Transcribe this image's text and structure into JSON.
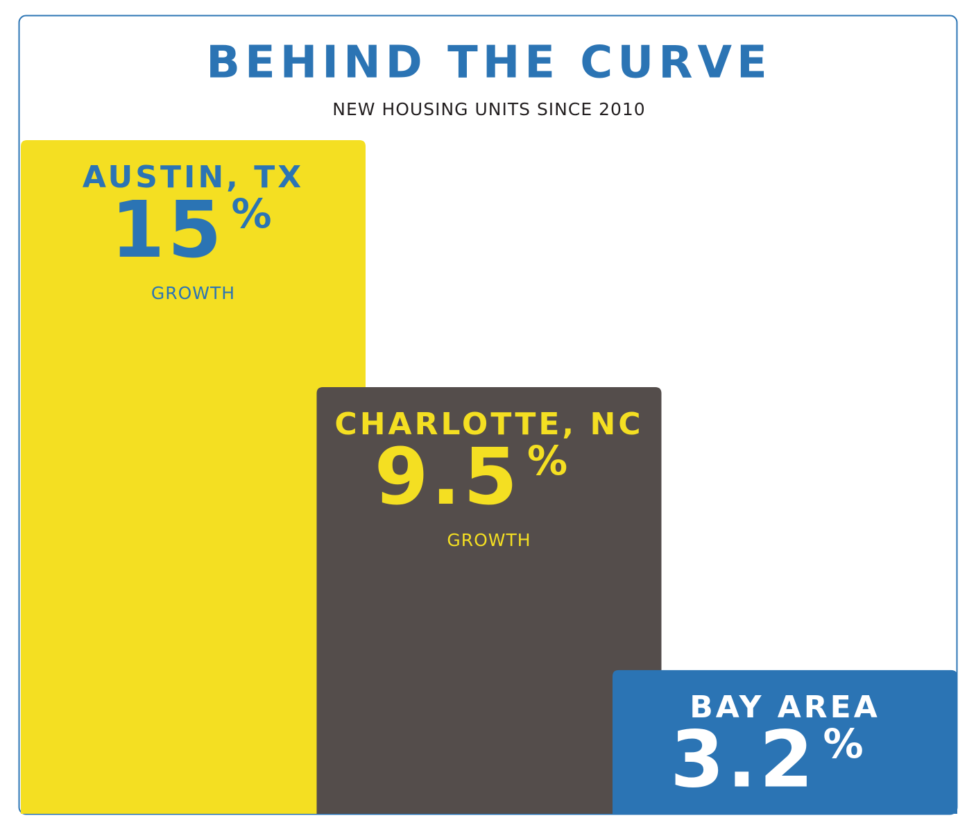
{
  "chart_data": {
    "type": "bar",
    "title": "BEHIND THE CURVE",
    "subtitle": "NEW HOUSING UNITS SINCE 2010",
    "categories": [
      "AUSTIN, TX",
      "CHARLOTTE, NC",
      "BAY AREA"
    ],
    "values": [
      15,
      9.5,
      3.2
    ],
    "unit_label": "%",
    "bar_caption": "GROWTH",
    "colors": [
      "#f4df22",
      "#544d4b",
      "#2b74b4"
    ],
    "label_colors": [
      "#2b74b4",
      "#f4df22",
      "#ffffff"
    ]
  }
}
